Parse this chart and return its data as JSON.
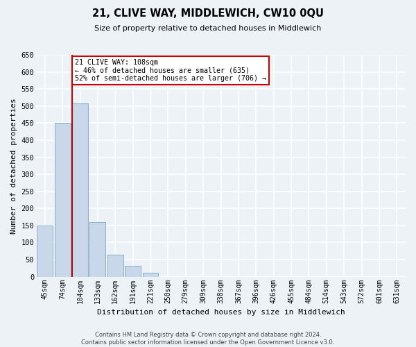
{
  "title": "21, CLIVE WAY, MIDDLEWICH, CW10 0QU",
  "subtitle": "Size of property relative to detached houses in Middlewich",
  "xlabel": "Distribution of detached houses by size in Middlewich",
  "ylabel": "Number of detached properties",
  "categories": [
    "45sqm",
    "74sqm",
    "104sqm",
    "133sqm",
    "162sqm",
    "191sqm",
    "221sqm",
    "250sqm",
    "279sqm",
    "309sqm",
    "338sqm",
    "367sqm",
    "396sqm",
    "426sqm",
    "455sqm",
    "484sqm",
    "514sqm",
    "543sqm",
    "572sqm",
    "601sqm",
    "631sqm"
  ],
  "values": [
    150,
    450,
    508,
    160,
    65,
    32,
    12,
    0,
    0,
    0,
    0,
    0,
    0,
    0,
    0,
    0,
    0,
    0,
    0,
    0,
    0
  ],
  "bar_color": "#c8d8ea",
  "bar_edge_color": "#8aaec8",
  "property_line_color": "#cc0000",
  "property_line_index": 2,
  "annotation_box_text": "21 CLIVE WAY: 108sqm\n← 46% of detached houses are smaller (635)\n52% of semi-detached houses are larger (706) →",
  "annotation_box_color": "#ffffff",
  "annotation_box_edge_color": "#cc0000",
  "ylim": [
    0,
    650
  ],
  "yticks": [
    0,
    50,
    100,
    150,
    200,
    250,
    300,
    350,
    400,
    450,
    500,
    550,
    600,
    650
  ],
  "background_color": "#edf2f7",
  "grid_color": "#ffffff",
  "footnote": "Contains HM Land Registry data © Crown copyright and database right 2024.\nContains public sector information licensed under the Open Government Licence v3.0."
}
